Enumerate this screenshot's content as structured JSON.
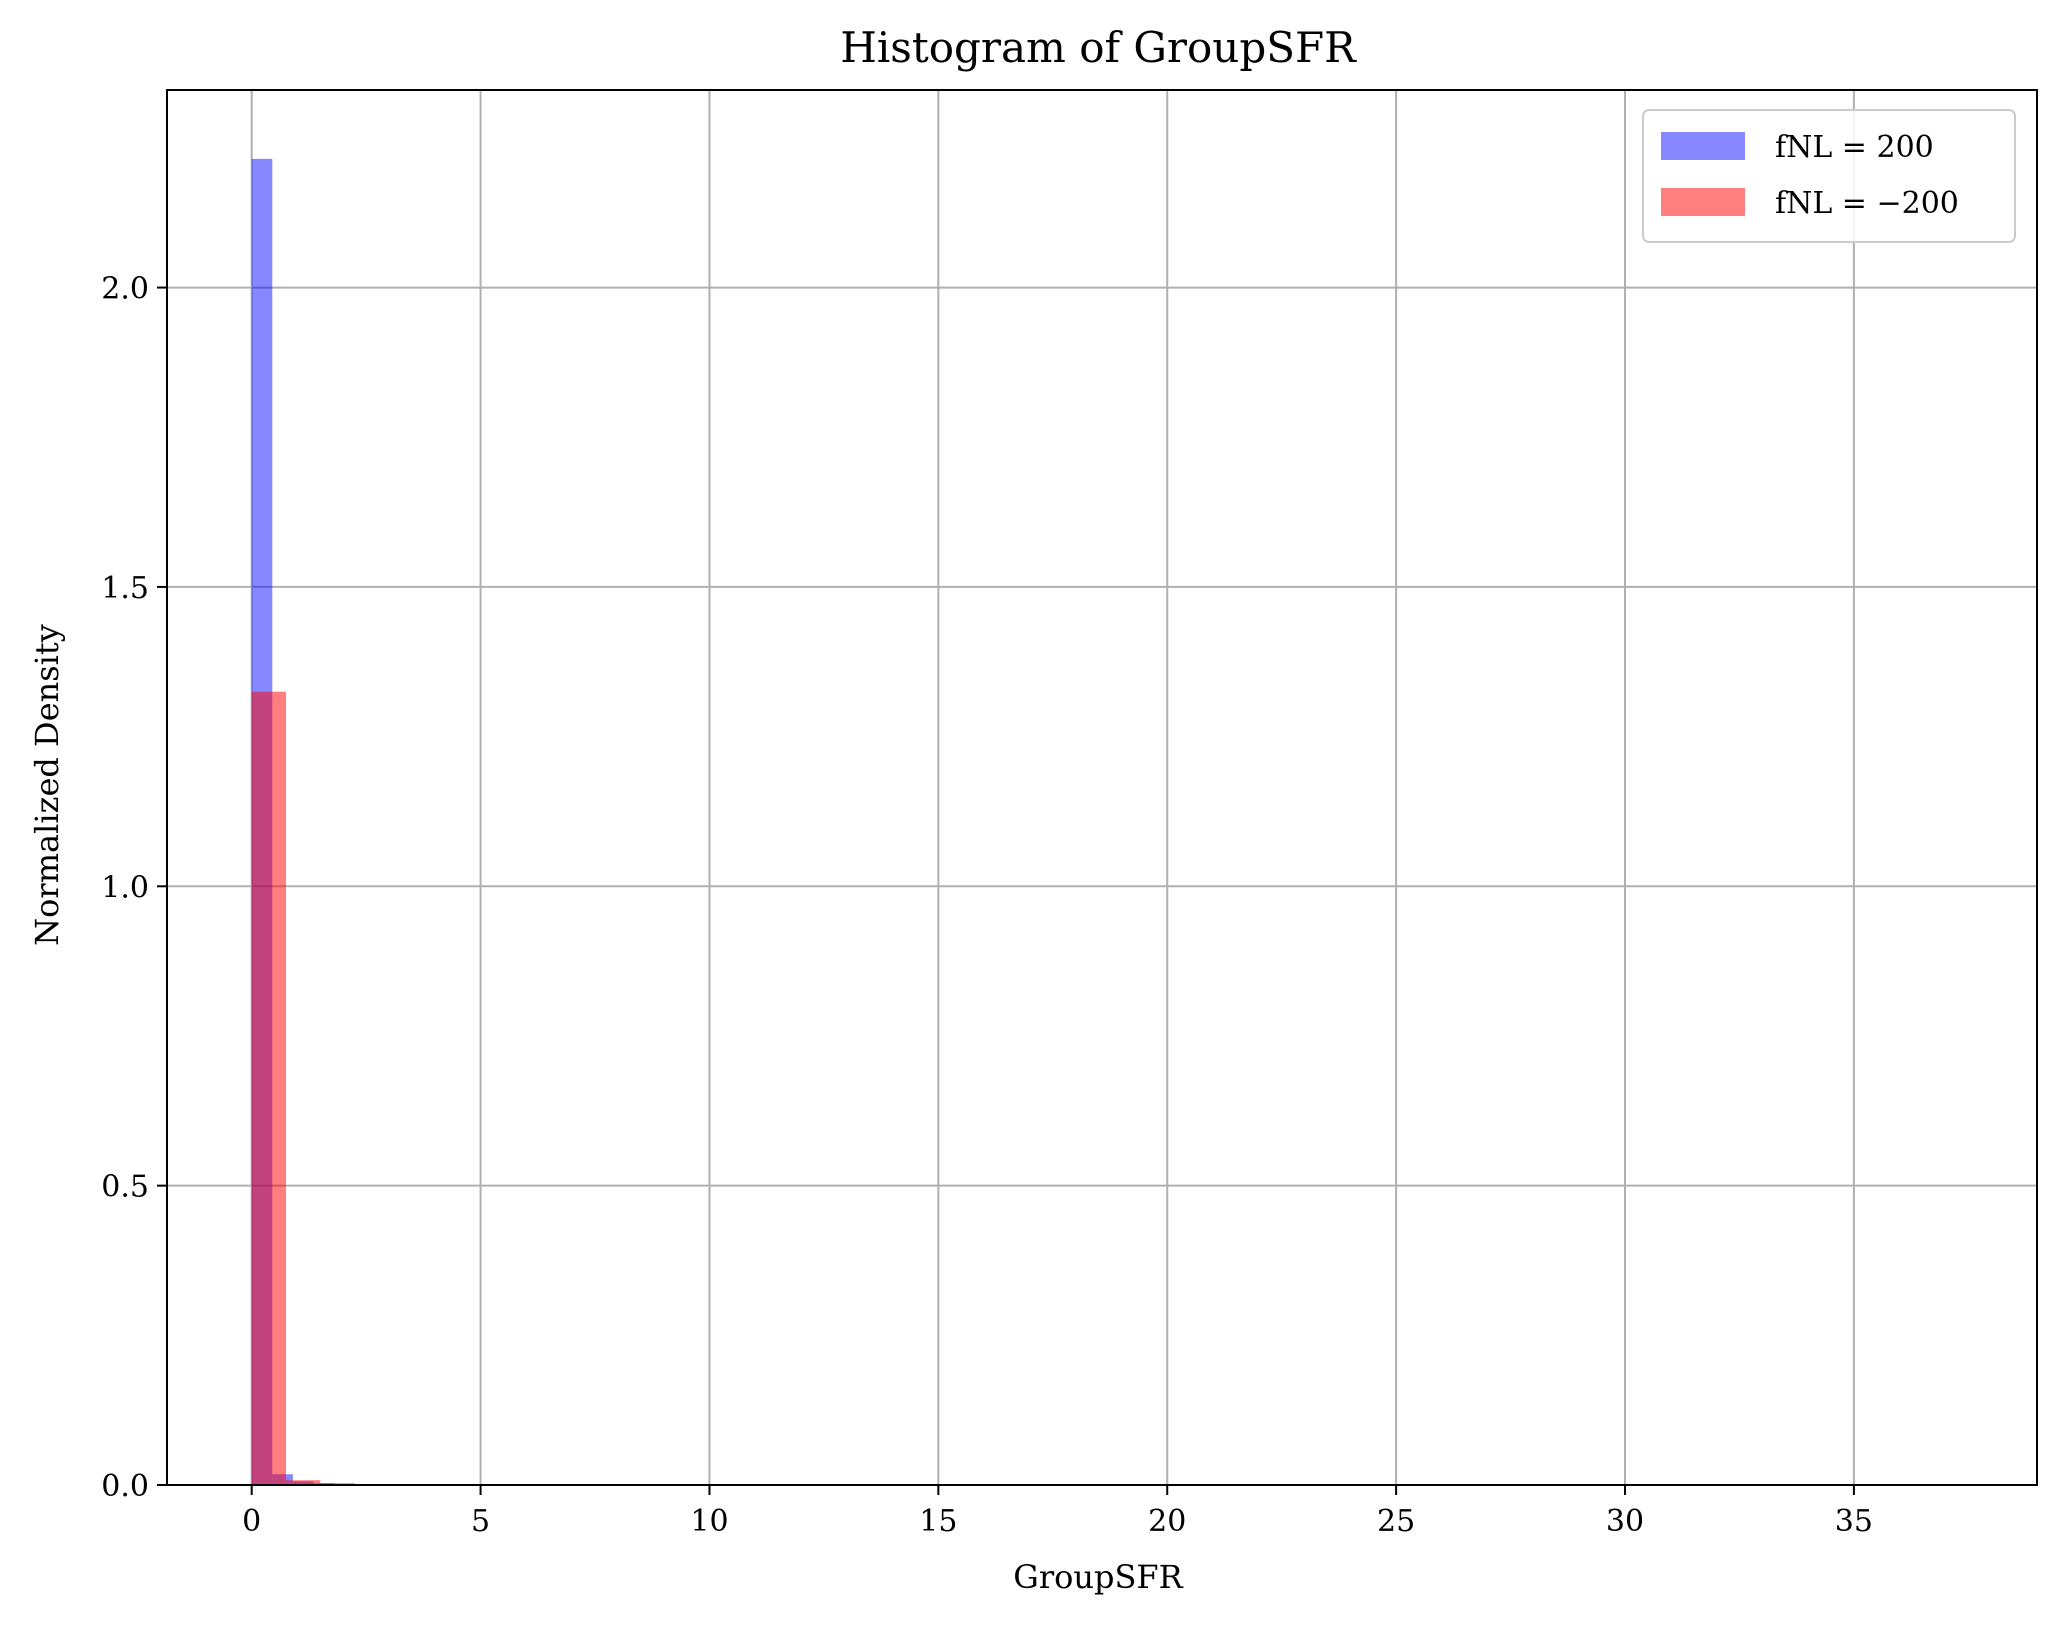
{
  "chart_data": {
    "type": "bar",
    "title": "Histogram of GroupSFR",
    "xlabel": "GroupSFR",
    "ylabel": "Normalized Density",
    "xlim": [
      -1.85,
      39.0
    ],
    "ylim": [
      0,
      2.33
    ],
    "xticks": [
      0,
      5,
      10,
      15,
      20,
      25,
      30,
      35
    ],
    "xtick_labels": [
      "0",
      "5",
      "10",
      "15",
      "20",
      "25",
      "30",
      "35"
    ],
    "yticks": [
      0.0,
      0.5,
      1.0,
      1.5,
      2.0
    ],
    "ytick_labels": [
      "0.0",
      "0.5",
      "1.0",
      "1.5",
      "2.0"
    ],
    "grid": true,
    "legend_position": "top-right",
    "series": [
      {
        "name": "fNL = 200",
        "color": "#0000ff",
        "alpha": 0.47,
        "bins": [
          {
            "x0": 0.0,
            "x1": 0.45,
            "y": 2.215
          },
          {
            "x0": 0.45,
            "x1": 0.9,
            "y": 0.018
          },
          {
            "x0": 0.9,
            "x1": 1.35,
            "y": 0.006
          },
          {
            "x0": 1.35,
            "x1": 1.8,
            "y": 0.003
          },
          {
            "x0": 1.8,
            "x1": 2.25,
            "y": 0.0015
          }
        ]
      },
      {
        "name": "fNL = −200",
        "color": "#ff0000",
        "alpha": 0.5,
        "bins": [
          {
            "x0": 0.0,
            "x1": 0.75,
            "y": 1.325
          },
          {
            "x0": 0.75,
            "x1": 1.5,
            "y": 0.008
          },
          {
            "x0": 1.5,
            "x1": 2.25,
            "y": 0.003
          }
        ]
      }
    ]
  }
}
